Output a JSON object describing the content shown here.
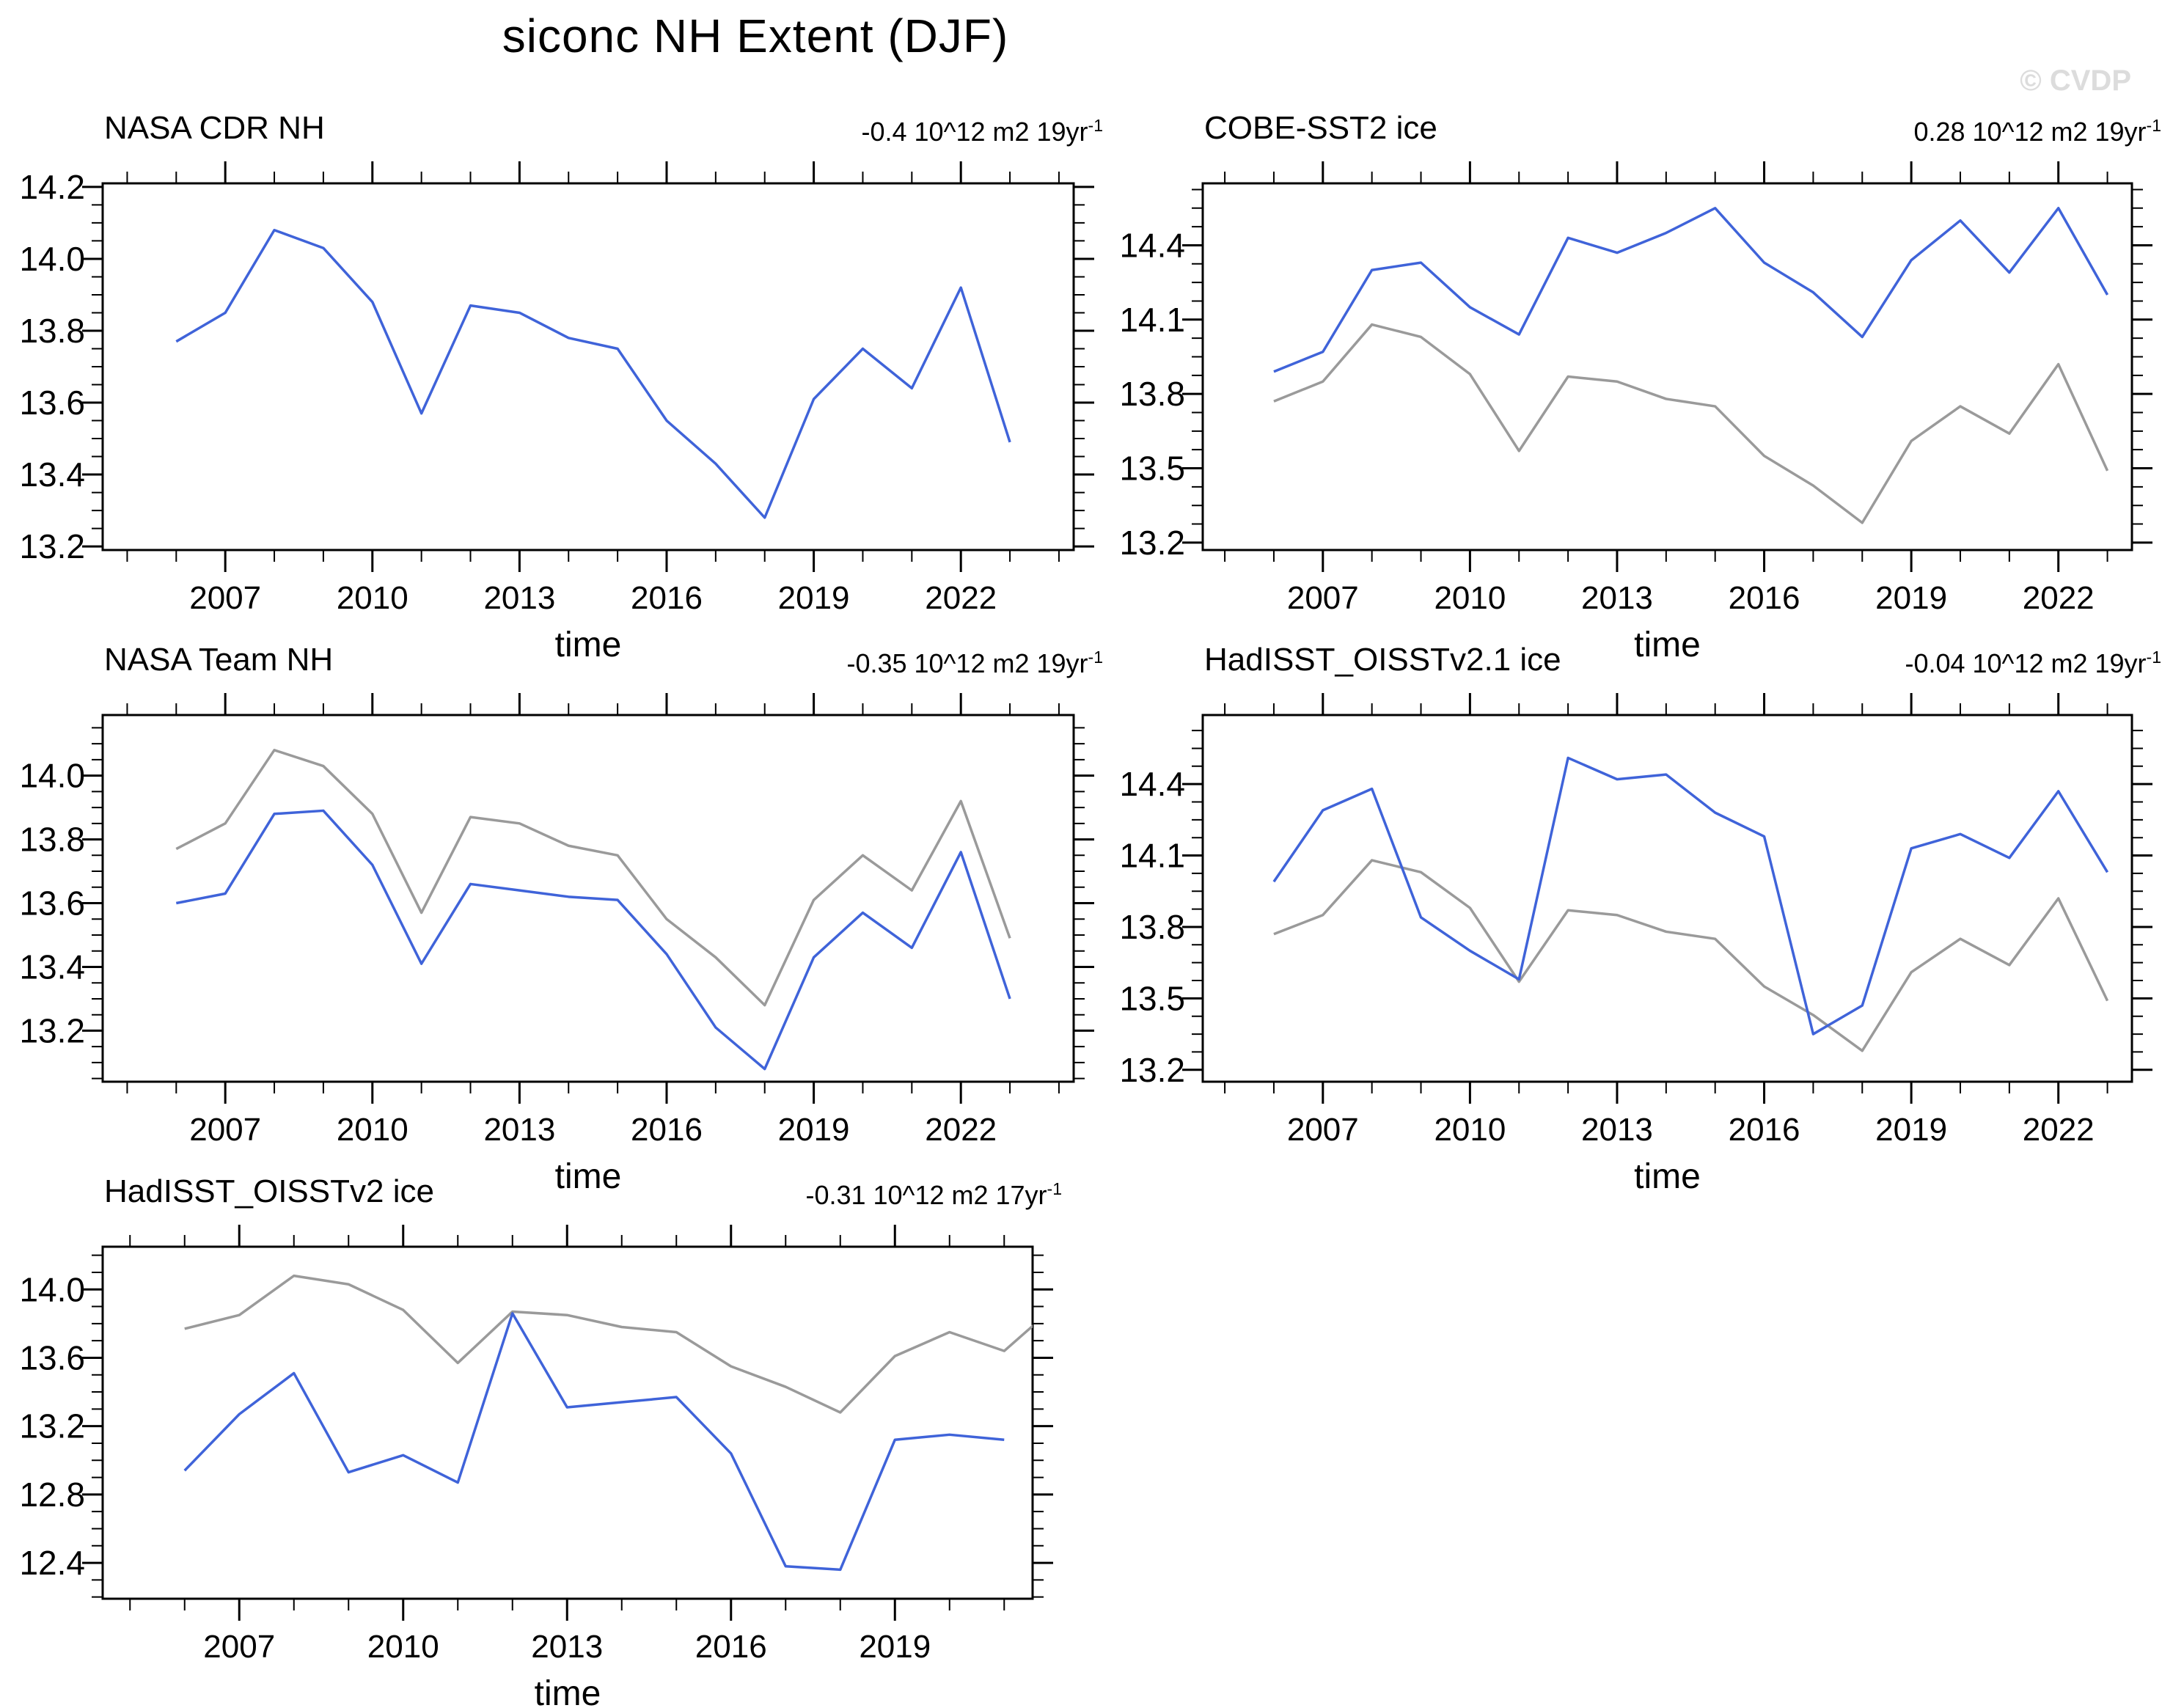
{
  "title": "siconc NH Extent (DJF)",
  "watermark": "© CVDP",
  "xlabel": "time",
  "colors": {
    "line_blue": "#3f63d9",
    "line_gray": "#9a9a9a",
    "axis": "#000000",
    "watermark": "#dcdcdc"
  },
  "chart_data": {
    "type": "line",
    "grid": false,
    "legend": "none",
    "reference_series": "NASA CDR NH",
    "panels": [
      {
        "name": "NASA CDR NH",
        "trend_main": "-0.4 10^12 m2 19yr",
        "trend_sup": "-1",
        "xlim": [
          2004.5,
          2024.3
        ],
        "ylim": [
          13.19,
          14.21
        ],
        "xticks": [
          2007,
          2010,
          2013,
          2016,
          2019,
          2022
        ],
        "yticks": [
          13.2,
          13.4,
          13.6,
          13.8,
          14.0,
          14.2
        ],
        "yminor": 0.05,
        "series": [
          {
            "name": "NASA CDR NH",
            "color": "blue",
            "years": [
              2006,
              2007,
              2008,
              2009,
              2010,
              2011,
              2012,
              2013,
              2014,
              2015,
              2016,
              2017,
              2018,
              2019,
              2020,
              2021,
              2022,
              2023
            ],
            "values": [
              13.77,
              13.85,
              14.08,
              14.03,
              13.88,
              13.57,
              13.87,
              13.85,
              13.78,
              13.75,
              13.55,
              13.43,
              13.28,
              13.61,
              13.75,
              13.64,
              13.92,
              13.49
            ]
          }
        ]
      },
      {
        "name": "COBE-SST2 ice",
        "trend_main": "0.28 10^12 m2 19yr",
        "trend_sup": "-1",
        "xlim": [
          2004.55,
          2023.5
        ],
        "ylim": [
          13.17,
          14.65
        ],
        "xticks": [
          2007,
          2010,
          2013,
          2016,
          2019,
          2022
        ],
        "yticks": [
          13.2,
          13.5,
          13.8,
          14.1,
          14.4
        ],
        "yminor": 0.075,
        "series": [
          {
            "name": "NASA CDR NH (reference)",
            "color": "gray",
            "years": [
              2006,
              2007,
              2008,
              2009,
              2010,
              2011,
              2012,
              2013,
              2014,
              2015,
              2016,
              2017,
              2018,
              2019,
              2020,
              2021,
              2022,
              2023
            ],
            "values": [
              13.77,
              13.85,
              14.08,
              14.03,
              13.88,
              13.57,
              13.87,
              13.85,
              13.78,
              13.75,
              13.55,
              13.43,
              13.28,
              13.61,
              13.75,
              13.64,
              13.92,
              13.49
            ]
          },
          {
            "name": "COBE-SST2 ice",
            "color": "blue",
            "years": [
              2006,
              2007,
              2008,
              2009,
              2010,
              2011,
              2012,
              2013,
              2014,
              2015,
              2016,
              2017,
              2018,
              2019,
              2020,
              2021,
              2022,
              2023
            ],
            "values": [
              13.89,
              13.97,
              14.3,
              14.33,
              14.15,
              14.04,
              14.43,
              14.37,
              14.45,
              14.55,
              14.33,
              14.21,
              14.03,
              14.34,
              14.5,
              14.29,
              14.55,
              14.2
            ]
          }
        ]
      },
      {
        "name": "NASA Team NH",
        "trend_main": "-0.35 10^12 m2 19yr",
        "trend_sup": "-1",
        "xlim": [
          2004.5,
          2024.3
        ],
        "ylim": [
          13.04,
          14.19
        ],
        "xticks": [
          2007,
          2010,
          2013,
          2016,
          2019,
          2022
        ],
        "yticks": [
          13.2,
          13.4,
          13.6,
          13.8,
          14.0
        ],
        "yminor": 0.05,
        "series": [
          {
            "name": "NASA CDR NH (reference)",
            "color": "gray",
            "years": [
              2006,
              2007,
              2008,
              2009,
              2010,
              2011,
              2012,
              2013,
              2014,
              2015,
              2016,
              2017,
              2018,
              2019,
              2020,
              2021,
              2022,
              2023
            ],
            "values": [
              13.77,
              13.85,
              14.08,
              14.03,
              13.88,
              13.57,
              13.87,
              13.85,
              13.78,
              13.75,
              13.55,
              13.43,
              13.28,
              13.61,
              13.75,
              13.64,
              13.92,
              13.49
            ]
          },
          {
            "name": "NASA Team NH",
            "color": "blue",
            "years": [
              2006,
              2007,
              2008,
              2009,
              2010,
              2011,
              2012,
              2013,
              2014,
              2015,
              2016,
              2017,
              2018,
              2019,
              2020,
              2021,
              2022,
              2023
            ],
            "values": [
              13.6,
              13.63,
              13.88,
              13.89,
              13.72,
              13.41,
              13.66,
              13.64,
              13.62,
              13.61,
              13.44,
              13.21,
              13.08,
              13.43,
              13.57,
              13.46,
              13.76,
              13.3
            ]
          }
        ]
      },
      {
        "name": "HadISST_OISSTv2.1 ice",
        "trend_main": "-0.04 10^12 m2 19yr",
        "trend_sup": "-1",
        "xlim": [
          2004.55,
          2023.5
        ],
        "ylim": [
          13.15,
          14.69
        ],
        "xticks": [
          2007,
          2010,
          2013,
          2016,
          2019,
          2022
        ],
        "yticks": [
          13.2,
          13.5,
          13.8,
          14.1,
          14.4
        ],
        "yminor": 0.075,
        "series": [
          {
            "name": "NASA CDR NH (reference)",
            "color": "gray",
            "years": [
              2006,
              2007,
              2008,
              2009,
              2010,
              2011,
              2012,
              2013,
              2014,
              2015,
              2016,
              2017,
              2018,
              2019,
              2020,
              2021,
              2022,
              2023
            ],
            "values": [
              13.77,
              13.85,
              14.08,
              14.03,
              13.88,
              13.57,
              13.87,
              13.85,
              13.78,
              13.75,
              13.55,
              13.43,
              13.28,
              13.61,
              13.75,
              13.64,
              13.92,
              13.49
            ]
          },
          {
            "name": "HadISST_OISSTv2.1 ice",
            "color": "blue",
            "years": [
              2006,
              2007,
              2008,
              2009,
              2010,
              2011,
              2012,
              2013,
              2014,
              2015,
              2016,
              2017,
              2018,
              2019,
              2020,
              2021,
              2022,
              2023
            ],
            "values": [
              13.99,
              14.29,
              14.38,
              13.84,
              13.7,
              13.58,
              14.51,
              14.42,
              14.44,
              14.28,
              14.18,
              13.35,
              13.47,
              14.13,
              14.19,
              14.09,
              14.37,
              14.03
            ]
          }
        ]
      },
      {
        "name": "HadISST_OISSTv2 ice",
        "trend_main": "-0.31 10^12 m2 17yr",
        "trend_sup": "-1",
        "xlim": [
          2004.5,
          2021.52
        ],
        "ylim": [
          12.19,
          14.25
        ],
        "xticks": [
          2007,
          2010,
          2013,
          2016,
          2019
        ],
        "yticks": [
          12.4,
          12.8,
          13.2,
          13.6,
          14.0
        ],
        "yminor": 0.1,
        "series": [
          {
            "name": "NASA CDR NH (reference)",
            "color": "gray",
            "years": [
              2006,
              2007,
              2008,
              2009,
              2010,
              2011,
              2012,
              2013,
              2014,
              2015,
              2016,
              2017,
              2018,
              2019,
              2020,
              2021,
              2022
            ],
            "values": [
              13.77,
              13.85,
              14.08,
              14.03,
              13.88,
              13.57,
              13.87,
              13.85,
              13.78,
              13.75,
              13.55,
              13.43,
              13.28,
              13.61,
              13.75,
              13.64,
              13.92
            ]
          },
          {
            "name": "HadISST_OISSTv2 ice",
            "color": "blue",
            "years": [
              2006,
              2007,
              2008,
              2009,
              2010,
              2011,
              2012,
              2013,
              2014,
              2015,
              2016,
              2017,
              2018,
              2019,
              2020,
              2021
            ],
            "values": [
              12.94,
              13.27,
              13.51,
              12.93,
              13.03,
              12.87,
              13.86,
              13.31,
              13.34,
              13.37,
              13.04,
              12.38,
              12.36,
              13.12,
              13.15,
              13.12
            ]
          }
        ]
      }
    ]
  }
}
